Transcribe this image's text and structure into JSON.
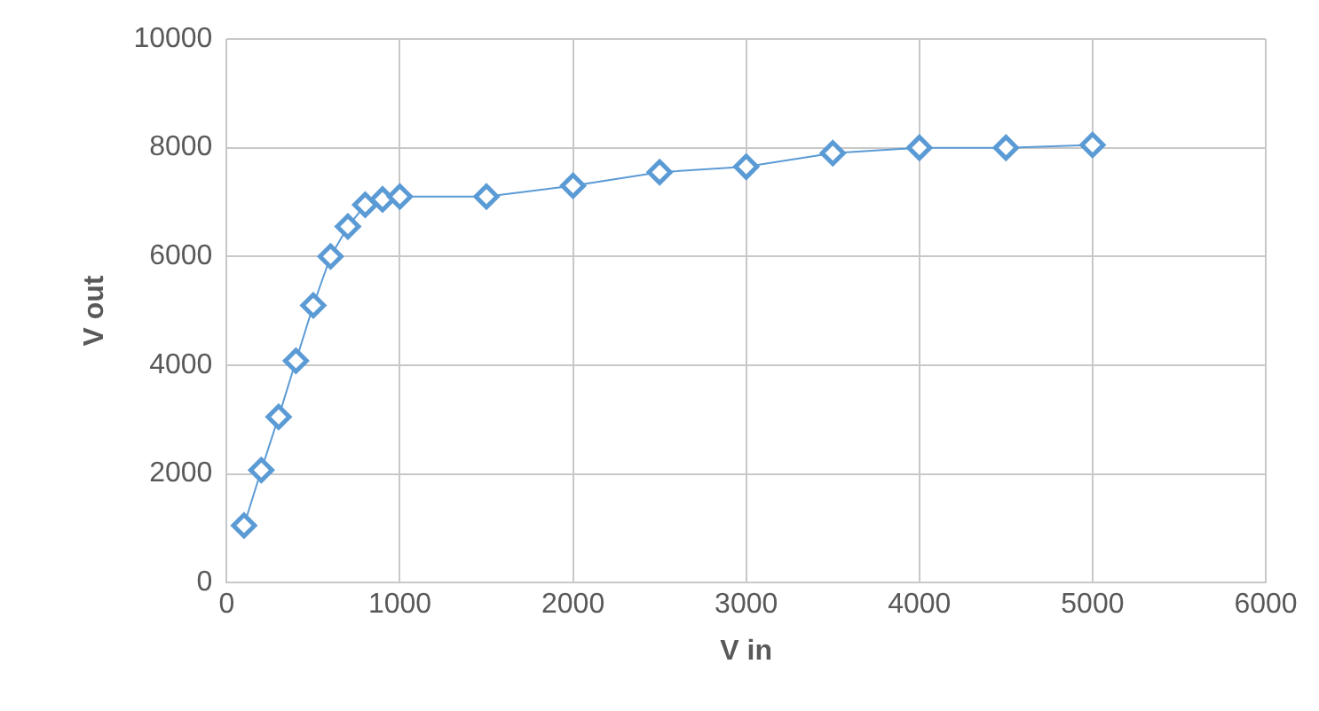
{
  "chart_data": {
    "type": "line",
    "xlabel": "V in",
    "ylabel": "V out",
    "x": [
      100,
      200,
      300,
      400,
      500,
      600,
      700,
      800,
      900,
      1000,
      1500,
      2000,
      2500,
      3000,
      3500,
      4000,
      4500,
      5000
    ],
    "series": [
      {
        "color": "#5b9bd5",
        "values": [
          1050,
          2070,
          3050,
          4080,
          5100,
          6000,
          6550,
          6950,
          7050,
          7100,
          7100,
          7300,
          7550,
          7650,
          7900,
          8000,
          8000,
          8050
        ]
      }
    ],
    "xlim": [
      0,
      6000
    ],
    "xticks": [
      0,
      1000,
      2000,
      3000,
      4000,
      5000,
      6000
    ],
    "ylim": [
      0,
      10000
    ],
    "yticks": [
      0,
      2000,
      4000,
      6000,
      8000,
      10000
    ],
    "grid": true,
    "legend": false,
    "marker": "diamond",
    "line_style": "solid"
  }
}
